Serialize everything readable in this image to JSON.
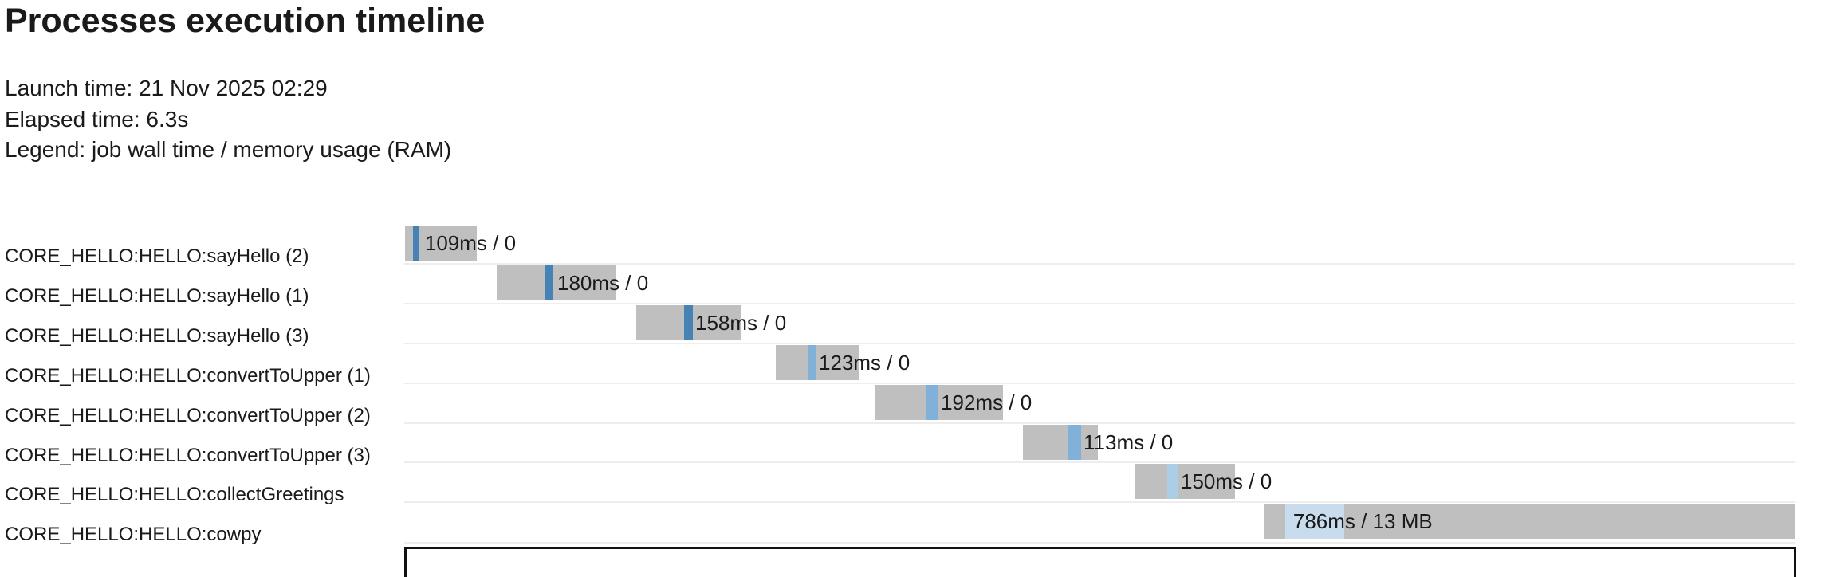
{
  "header": {
    "title": "Processes execution timeline",
    "launch_line": "Launch time: 21 Nov 2025 02:29",
    "elapsed_line": "Elapsed time: 6.3s",
    "legend_line": "Legend: job wall time / memory usage (RAM)"
  },
  "chart_data": {
    "type": "gantt",
    "title": "Processes execution timeline",
    "launch_time": "21 Nov 2025 02:29",
    "elapsed_time": "6.3s",
    "legend": "job wall time / memory usage (RAM)",
    "time_axis": {
      "min_ms": 0,
      "max_ms": 6300,
      "gridlines": false,
      "axis_labels_visible": false
    },
    "bar_track_color": "#bfbfbf",
    "row_separator_color": "#ededed",
    "text_color": "#1a1a1a",
    "process_colors": {
      "sayHello": "#4682b4",
      "convertToUpper": "#81b1d8",
      "collectGreetings": "#abcee6",
      "cowpy": "#c9dcee"
    },
    "tasks": [
      {
        "label": "CORE_HELLO:HELLO:sayHello (2)",
        "process": "sayHello",
        "wall_time": "109ms",
        "memory": "0",
        "bar_label": "109ms / 0",
        "bar_start_ms": 0,
        "bar_end_ms": 325,
        "run_start_ms": 36,
        "run_end_ms": 65,
        "label_offset_ms": 90,
        "color": "#4682b4"
      },
      {
        "label": "CORE_HELLO:HELLO:sayHello (1)",
        "process": "sayHello",
        "wall_time": "180ms",
        "memory": "0",
        "bar_label": "180ms / 0",
        "bar_start_ms": 415,
        "bar_end_ms": 957,
        "run_start_ms": 636,
        "run_end_ms": 672,
        "label_offset_ms": 690,
        "color": "#4682b4"
      },
      {
        "label": "CORE_HELLO:HELLO:sayHello (3)",
        "process": "sayHello",
        "wall_time": "158ms",
        "memory": "0",
        "bar_label": "158ms / 0",
        "bar_start_ms": 1048,
        "bar_end_ms": 1521,
        "run_start_ms": 1264,
        "run_end_ms": 1304,
        "label_offset_ms": 1315,
        "color": "#4682b4"
      },
      {
        "label": "CORE_HELLO:HELLO:convertToUpper (1)",
        "process": "convertToUpper",
        "wall_time": "123ms",
        "memory": "0",
        "bar_label": "123ms / 0",
        "bar_start_ms": 1680,
        "bar_end_ms": 2059,
        "run_start_ms": 1824,
        "run_end_ms": 1864,
        "label_offset_ms": 1875,
        "color": "#81b1d8"
      },
      {
        "label": "CORE_HELLO:HELLO:convertToUpper (2)",
        "process": "convertToUpper",
        "wall_time": "192ms",
        "memory": "0",
        "bar_label": "192ms / 0",
        "bar_start_ms": 2131,
        "bar_end_ms": 2710,
        "run_start_ms": 2363,
        "run_end_ms": 2417,
        "label_offset_ms": 2428,
        "color": "#81b1d8"
      },
      {
        "label": "CORE_HELLO:HELLO:convertToUpper (3)",
        "process": "convertToUpper",
        "wall_time": "113ms",
        "memory": "0",
        "bar_label": "113ms / 0",
        "bar_start_ms": 2800,
        "bar_end_ms": 3139,
        "run_start_ms": 3006,
        "run_end_ms": 3064,
        "label_offset_ms": 3074,
        "color": "#81b1d8"
      },
      {
        "label": "CORE_HELLO:HELLO:collectGreetings",
        "process": "collectGreetings",
        "wall_time": "150ms",
        "memory": "0",
        "bar_label": "150ms / 0",
        "bar_start_ms": 3309,
        "bar_end_ms": 3761,
        "run_start_ms": 3453,
        "run_end_ms": 3504,
        "label_offset_ms": 3515,
        "color": "#abcee6"
      },
      {
        "label": "CORE_HELLO:HELLO:cowpy",
        "process": "cowpy",
        "wall_time": "786ms",
        "memory": "13 MB",
        "bar_label": "786ms / 13 MB",
        "bar_start_ms": 3894,
        "bar_end_ms": 6300,
        "run_start_ms": 3988,
        "run_end_ms": 4256,
        "label_offset_ms": 4024,
        "color": "#c9dcee"
      }
    ]
  }
}
